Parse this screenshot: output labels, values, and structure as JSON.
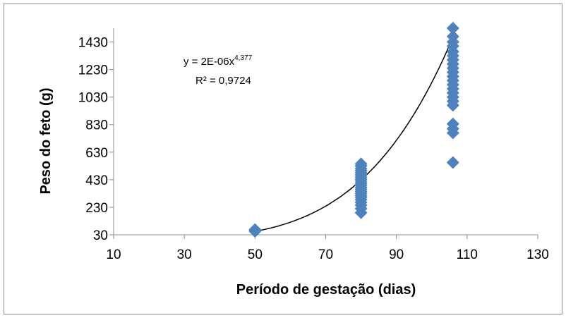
{
  "chart_data": {
    "type": "scatter",
    "title": "",
    "xlabel": "Período de gestação (dias)",
    "ylabel": "Peso do feto (g)",
    "xlim": [
      10,
      130
    ],
    "ylim": [
      30,
      1530
    ],
    "x_ticks": [
      "10",
      "30",
      "50",
      "70",
      "90",
      "110",
      "130"
    ],
    "y_ticks": [
      "30",
      "230",
      "430",
      "630",
      "830",
      "1030",
      "1230",
      "1430"
    ],
    "grid": false,
    "marker": "diamond",
    "marker_color": "#4f81bd",
    "series": [
      {
        "points": [
          {
            "x": 50,
            "y": 55
          },
          {
            "x": 50,
            "y": 62
          },
          {
            "x": 50,
            "y": 68
          },
          {
            "x": 80,
            "y": 190
          },
          {
            "x": 80,
            "y": 220
          },
          {
            "x": 80,
            "y": 245
          },
          {
            "x": 80,
            "y": 265
          },
          {
            "x": 80,
            "y": 285
          },
          {
            "x": 80,
            "y": 300
          },
          {
            "x": 80,
            "y": 315
          },
          {
            "x": 80,
            "y": 330
          },
          {
            "x": 80,
            "y": 345
          },
          {
            "x": 80,
            "y": 360
          },
          {
            "x": 80,
            "y": 375
          },
          {
            "x": 80,
            "y": 390
          },
          {
            "x": 80,
            "y": 405
          },
          {
            "x": 80,
            "y": 420
          },
          {
            "x": 80,
            "y": 435
          },
          {
            "x": 80,
            "y": 450
          },
          {
            "x": 80,
            "y": 465
          },
          {
            "x": 80,
            "y": 480
          },
          {
            "x": 80,
            "y": 495
          },
          {
            "x": 80,
            "y": 510
          },
          {
            "x": 80,
            "y": 530
          },
          {
            "x": 80,
            "y": 545
          },
          {
            "x": 106,
            "y": 555
          },
          {
            "x": 106,
            "y": 770
          },
          {
            "x": 106,
            "y": 800
          },
          {
            "x": 106,
            "y": 835
          },
          {
            "x": 106,
            "y": 970
          },
          {
            "x": 106,
            "y": 1000
          },
          {
            "x": 106,
            "y": 1030
          },
          {
            "x": 106,
            "y": 1060
          },
          {
            "x": 106,
            "y": 1090
          },
          {
            "x": 106,
            "y": 1120
          },
          {
            "x": 106,
            "y": 1150
          },
          {
            "x": 106,
            "y": 1180
          },
          {
            "x": 106,
            "y": 1210
          },
          {
            "x": 106,
            "y": 1240
          },
          {
            "x": 106,
            "y": 1270
          },
          {
            "x": 106,
            "y": 1300
          },
          {
            "x": 106,
            "y": 1330
          },
          {
            "x": 106,
            "y": 1360
          },
          {
            "x": 106,
            "y": 1400
          },
          {
            "x": 106,
            "y": 1430
          },
          {
            "x": 106,
            "y": 1470
          },
          {
            "x": 106,
            "y": 1530
          }
        ]
      }
    ],
    "trendline": {
      "type": "power",
      "coefficient": 2e-06,
      "exponent": 4.377,
      "x_range": [
        50,
        106
      ],
      "color": "#000000"
    },
    "annotations": {
      "equation_prefix": "y = 2E-06x",
      "equation_exponent": "4,377",
      "r_squared": "R² = 0,9724"
    }
  }
}
